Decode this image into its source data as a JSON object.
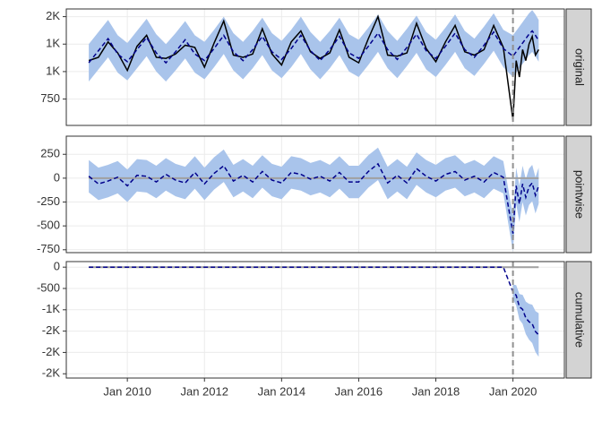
{
  "chart_data": {
    "type": "line",
    "x": [
      "2009-01",
      "2009-04",
      "2009-07",
      "2009-10",
      "2010-01",
      "2010-04",
      "2010-07",
      "2010-10",
      "2011-01",
      "2011-04",
      "2011-07",
      "2011-10",
      "2012-01",
      "2012-04",
      "2012-07",
      "2012-10",
      "2013-01",
      "2013-04",
      "2013-07",
      "2013-10",
      "2014-01",
      "2014-04",
      "2014-07",
      "2014-10",
      "2015-01",
      "2015-04",
      "2015-07",
      "2015-10",
      "2016-01",
      "2016-04",
      "2016-07",
      "2016-10",
      "2017-01",
      "2017-04",
      "2017-07",
      "2017-10",
      "2018-01",
      "2018-04",
      "2018-07",
      "2018-10",
      "2019-01",
      "2019-04",
      "2019-07",
      "2019-10",
      "2020-01",
      "2020-02",
      "2020-03",
      "2020-04",
      "2020-05",
      "2020-06",
      "2020-07",
      "2020-08",
      "2020-09"
    ],
    "xlim": [
      "2008-06",
      "2021-05"
    ],
    "xticks": [
      {
        "value": "2010-01",
        "label": "Jan 2010"
      },
      {
        "value": "2012-01",
        "label": "Jan 2012"
      },
      {
        "value": "2014-01",
        "label": "Jan 2014"
      },
      {
        "value": "2016-01",
        "label": "Jan 2016"
      },
      {
        "value": "2018-01",
        "label": "Jan 2018"
      },
      {
        "value": "2020-01",
        "label": "Jan 2020"
      }
    ],
    "intervention": "2020-01",
    "grid": true,
    "colors": {
      "band": "#a9c4eb",
      "mean": "#00008b",
      "observed": "#000000",
      "reference": "#a0a0a0",
      "intervention": "#909090"
    },
    "panels": [
      {
        "strip": "original",
        "ylim": [
          510,
          1570
        ],
        "yticks": [
          750,
          {
            "value": 1000,
            "label": "1K"
          },
          {
            "value": 1250,
            "label": "1K"
          },
          {
            "value": 1500,
            "label": "2K"
          }
        ],
        "lower": [
          910,
          1020,
          1130,
          990,
          920,
          1030,
          1140,
          1000,
          910,
          1010,
          1120,
          990,
          930,
          1040,
          1160,
          1010,
          930,
          1030,
          1150,
          1010,
          940,
          1040,
          1160,
          1020,
          930,
          1030,
          1150,
          1000,
          950,
          1060,
          1180,
          1030,
          940,
          1050,
          1170,
          1020,
          950,
          1060,
          1180,
          1030,
          960,
          1070,
          1190,
          1040,
          950,
          990,
          1030,
          1070,
          1110,
          1150,
          1180,
          1140,
          1090
        ],
        "upper": [
          1250,
          1360,
          1470,
          1330,
          1260,
          1370,
          1480,
          1340,
          1250,
          1350,
          1460,
          1330,
          1270,
          1380,
          1500,
          1350,
          1270,
          1370,
          1490,
          1350,
          1280,
          1380,
          1500,
          1360,
          1270,
          1370,
          1490,
          1340,
          1290,
          1400,
          1520,
          1370,
          1280,
          1390,
          1510,
          1360,
          1290,
          1400,
          1520,
          1370,
          1300,
          1410,
          1530,
          1380,
          1330,
          1370,
          1410,
          1450,
          1490,
          1530,
          1560,
          1520,
          1470
        ],
        "mean": [
          1080,
          1190,
          1300,
          1160,
          1090,
          1200,
          1310,
          1170,
          1080,
          1180,
          1290,
          1160,
          1100,
          1210,
          1330,
          1180,
          1100,
          1200,
          1320,
          1180,
          1110,
          1210,
          1330,
          1190,
          1100,
          1200,
          1320,
          1170,
          1120,
          1230,
          1350,
          1200,
          1110,
          1220,
          1340,
          1190,
          1120,
          1230,
          1350,
          1200,
          1130,
          1240,
          1360,
          1210,
          1140,
          1180,
          1220,
          1260,
          1300,
          1340,
          1370,
          1330,
          1280
        ],
        "observed": [
          1100,
          1130,
          1270,
          1170,
          1010,
          1230,
          1330,
          1130,
          1120,
          1160,
          1240,
          1220,
          1040,
          1260,
          1460,
          1150,
          1130,
          1160,
          1390,
          1160,
          1060,
          1270,
          1370,
          1180,
          1120,
          1170,
          1380,
          1130,
          1080,
          1300,
          1500,
          1150,
          1140,
          1170,
          1440,
          1210,
          1090,
          1270,
          1420,
          1180,
          1150,
          1200,
          1420,
          1220,
          560,
          1100,
          950,
          1200,
          1100,
          1250,
          1320,
          1150,
          1200
        ]
      },
      {
        "strip": "pointwise",
        "ylim": [
          -780,
          440
        ],
        "reference_line": 0,
        "yticks": [
          -750,
          -500,
          -250,
          0,
          250
        ],
        "lower": [
          -150,
          -230,
          -200,
          -160,
          -250,
          -140,
          -150,
          -210,
          -130,
          -190,
          -220,
          -110,
          -230,
          -120,
          -40,
          -200,
          -140,
          -210,
          -100,
          -190,
          -220,
          -110,
          -130,
          -180,
          -150,
          -200,
          -110,
          -210,
          -210,
          -100,
          -20,
          -220,
          -140,
          -220,
          -70,
          -150,
          -200,
          -130,
          -100,
          -190,
          -150,
          -210,
          -110,
          -160,
          -770,
          -270,
          -460,
          -250,
          -390,
          -280,
          -240,
          -370,
          -270
        ],
        "upper": [
          190,
          110,
          140,
          180,
          90,
          200,
          190,
          130,
          210,
          150,
          120,
          230,
          110,
          220,
          300,
          140,
          200,
          130,
          240,
          150,
          120,
          230,
          210,
          160,
          190,
          140,
          230,
          130,
          130,
          240,
          320,
          120,
          200,
          120,
          270,
          190,
          140,
          210,
          240,
          150,
          190,
          130,
          230,
          180,
          -390,
          110,
          -80,
          130,
          -10,
          100,
          140,
          10,
          110
        ],
        "mean": [
          20,
          -60,
          -30,
          10,
          -80,
          30,
          20,
          -40,
          40,
          -20,
          -50,
          60,
          -60,
          50,
          130,
          -30,
          30,
          -40,
          70,
          -20,
          -50,
          60,
          40,
          -10,
          20,
          -30,
          60,
          -40,
          -40,
          70,
          150,
          -50,
          30,
          -50,
          100,
          20,
          -30,
          40,
          70,
          -20,
          20,
          -40,
          60,
          10,
          -580,
          -80,
          -270,
          -60,
          -200,
          -90,
          -50,
          -180,
          -80
        ]
      },
      {
        "strip": "cumulative",
        "ylim": [
          -2600,
          130
        ],
        "reference_line": 0,
        "yticks": [
          {
            "value": -2500,
            "label": "-2K"
          },
          {
            "value": -2000,
            "label": "-2K"
          },
          {
            "value": -1500,
            "label": "-2K"
          },
          {
            "value": -1000,
            "label": "-1K"
          },
          -500,
          0
        ],
        "lower": [
          null,
          null,
          null,
          null,
          null,
          null,
          null,
          null,
          null,
          null,
          null,
          null,
          null,
          null,
          null,
          null,
          null,
          null,
          null,
          null,
          null,
          null,
          null,
          null,
          null,
          null,
          null,
          null,
          null,
          null,
          null,
          null,
          null,
          null,
          null,
          null,
          null,
          null,
          null,
          null,
          null,
          null,
          null,
          null,
          -750,
          -900,
          -1230,
          -1330,
          -1570,
          -1700,
          -1780,
          -1990,
          -2100
        ],
        "upper": [
          null,
          null,
          null,
          null,
          null,
          null,
          null,
          null,
          null,
          null,
          null,
          null,
          null,
          null,
          null,
          null,
          null,
          null,
          null,
          null,
          null,
          null,
          null,
          null,
          null,
          null,
          null,
          null,
          null,
          null,
          null,
          null,
          null,
          null,
          null,
          null,
          null,
          null,
          null,
          null,
          null,
          null,
          null,
          null,
          -410,
          -420,
          -630,
          -650,
          -810,
          -860,
          -880,
          -1030,
          -1080
        ],
        "mean": [
          0,
          0,
          0,
          0,
          0,
          0,
          0,
          0,
          0,
          0,
          0,
          0,
          0,
          0,
          0,
          0,
          0,
          0,
          0,
          0,
          0,
          0,
          0,
          0,
          0,
          0,
          0,
          0,
          0,
          0,
          0,
          0,
          0,
          0,
          0,
          0,
          0,
          0,
          0,
          0,
          0,
          0,
          0,
          0,
          -580,
          -660,
          -930,
          -990,
          -1190,
          -1280,
          -1330,
          -1510,
          -1590
        ]
      }
    ]
  }
}
